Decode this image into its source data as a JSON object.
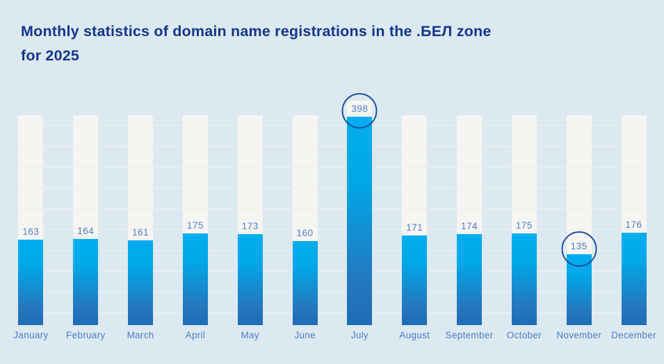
{
  "page": {
    "background_color": "#dce9f0"
  },
  "header": {
    "title_line1": "Monthly statistics of domain name registrations in the .БЕЛ zone",
    "title_line2": "for 2025",
    "title_color": "#14368c"
  },
  "chart_data": {
    "type": "bar",
    "title": "Monthly statistics of domain name registrations in the .БЕЛ zone for 2025",
    "categories": [
      "January",
      "February",
      "March",
      "April",
      "May",
      "June",
      "July",
      "August",
      "September",
      "October",
      "November",
      "December"
    ],
    "values": [
      163,
      164,
      161,
      175,
      173,
      160,
      398,
      171,
      174,
      175,
      135,
      176
    ],
    "xlabel": "",
    "ylabel": "",
    "ylim": [
      0,
      400
    ],
    "grid": true,
    "legend": "none",
    "annotations": [
      {
        "month": "July",
        "value": 398,
        "style": "circled"
      },
      {
        "month": "November",
        "value": 135,
        "style": "circled"
      }
    ],
    "highlighted_months": [
      "July",
      "November"
    ],
    "colors": {
      "bar_gradient_top": "#00aeef",
      "bar_gradient_bottom": "#1e6cb5",
      "track": "#f6f5f2",
      "value_label": "#4d7ec2",
      "month_label": "#4d7ec2",
      "highlight_ring": "#1d4f9f",
      "gridline": "#eef3f5"
    }
  }
}
